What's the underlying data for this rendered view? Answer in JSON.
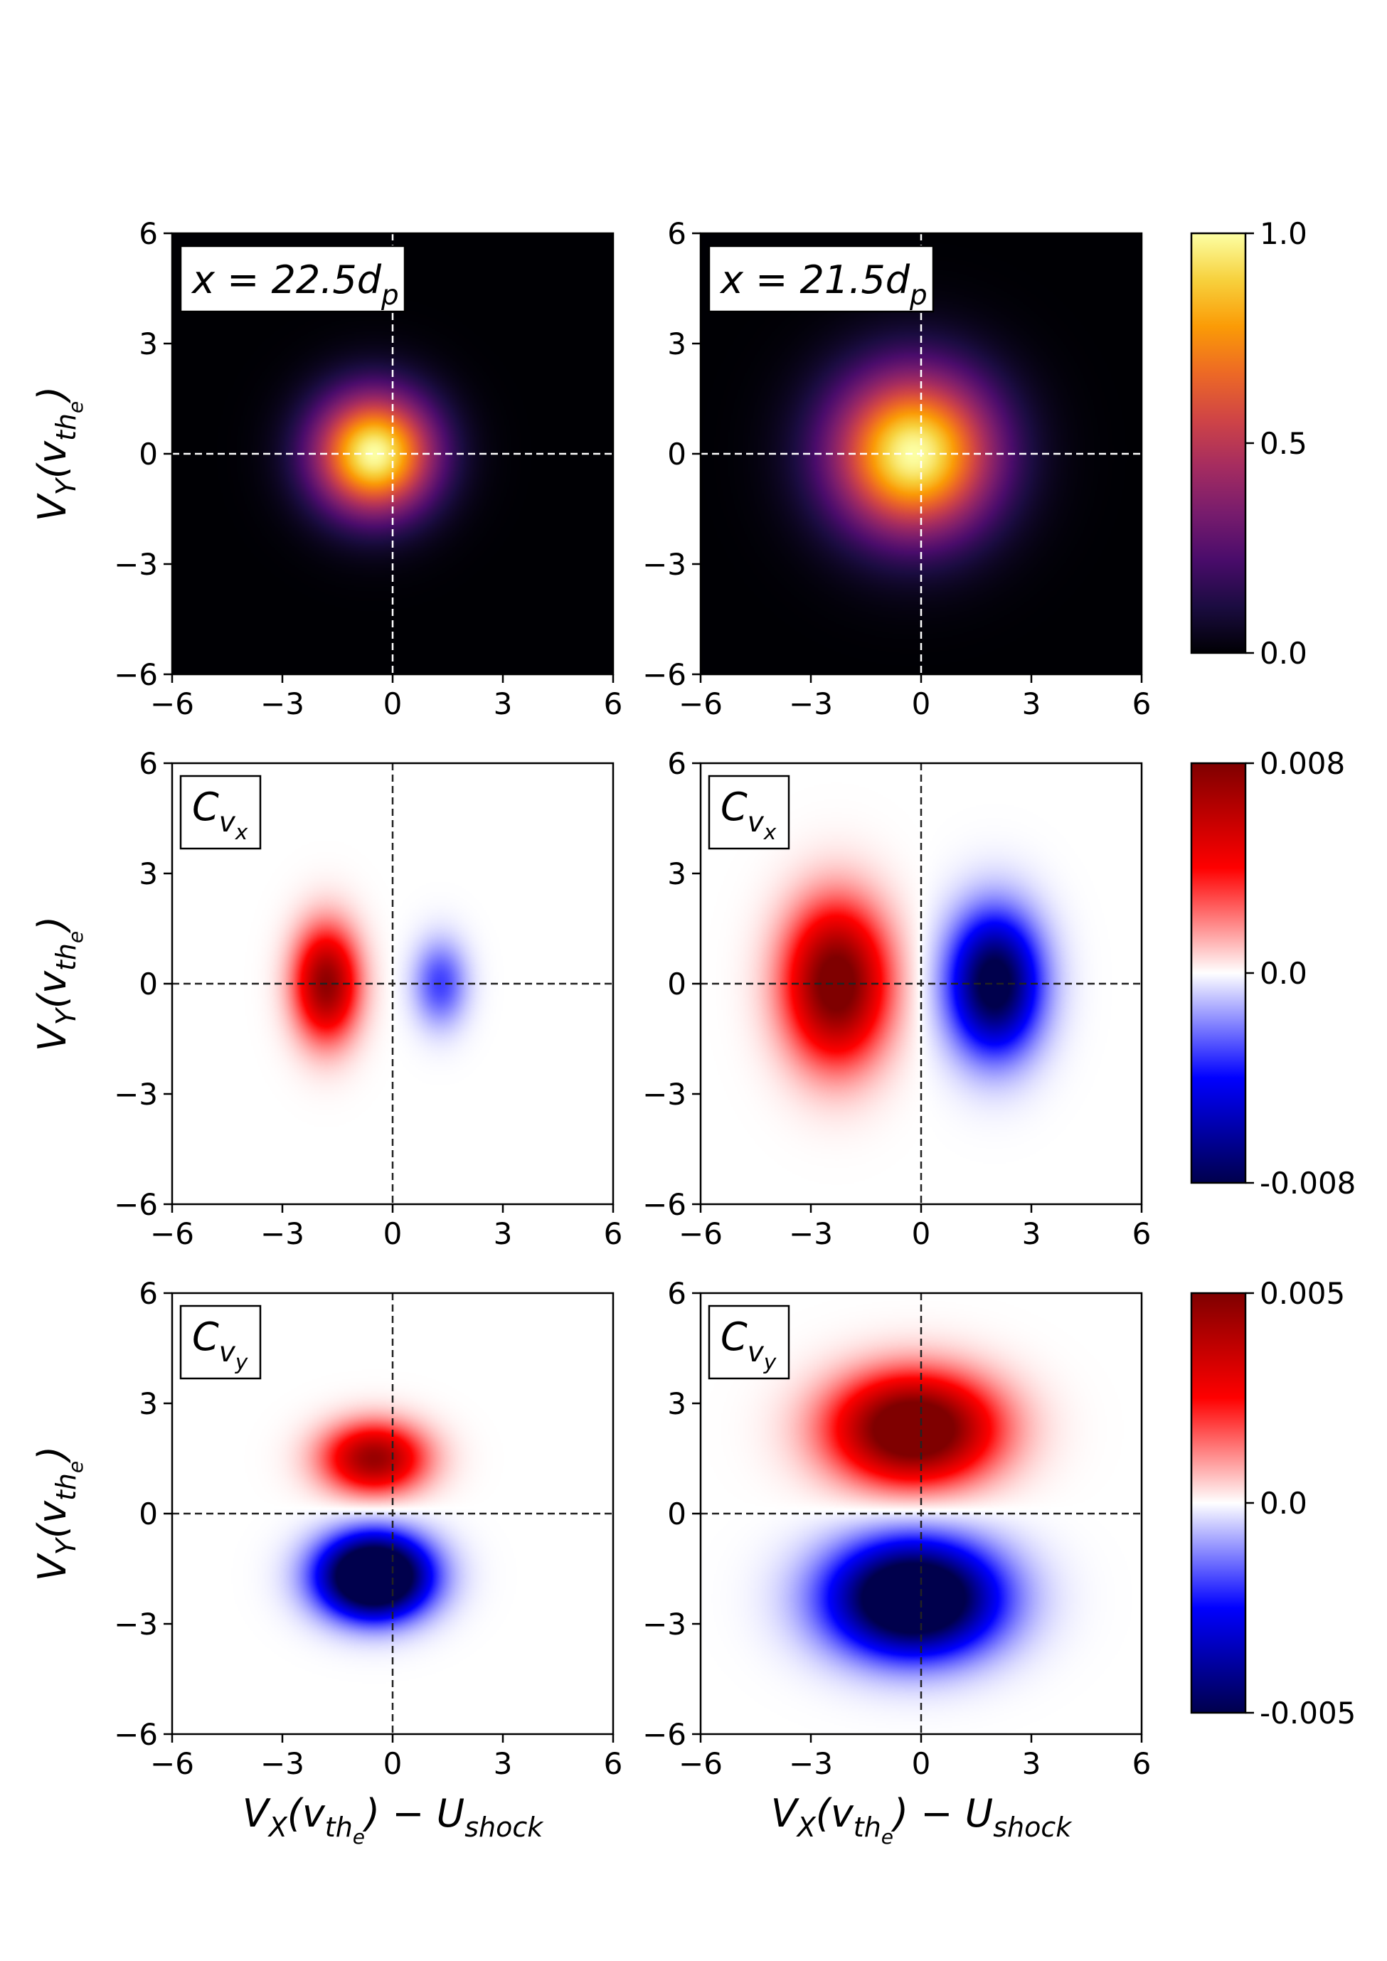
{
  "figure": {
    "column_xlabel": {
      "main": "V",
      "sub1": "X",
      "paren": "(v",
      "sub2": "th",
      "sub3": "e",
      "close": ") − U",
      "sub4": "shock"
    },
    "row_ylabel": {
      "main": "V",
      "sub1": "Y",
      "paren": "(v",
      "sub2": "th",
      "sub3": "e",
      "close": ")"
    }
  },
  "colors": {
    "inferno": [
      "#000004",
      "#1b0c41",
      "#4a0c6b",
      "#781c6d",
      "#a52c60",
      "#cf4446",
      "#ed6925",
      "#fb9b06",
      "#f7d13d",
      "#fcffa4"
    ],
    "seismic": [
      "#00004c",
      "#0000ff",
      "#ffffff",
      "#ff0000",
      "#7f0000"
    ],
    "dashed_dark": "#222222",
    "dashed_light": "#ffffff"
  },
  "chart_data": [
    {
      "id": "f-22.5",
      "type": "heatmap",
      "row": 0,
      "col": 0,
      "cmap": "inferno",
      "label": {
        "prefix": "x = 22.5d",
        "sub": "p"
      },
      "xlim": [
        -6,
        6
      ],
      "ylim": [
        -6,
        6
      ],
      "xticks": [
        "−6",
        "−3",
        "0",
        "3",
        "6"
      ],
      "yticks": [
        "6",
        "3",
        "0",
        "−3",
        "−6"
      ],
      "blobs": [
        {
          "cx": -0.5,
          "cy": 0.0,
          "sx": 1.15,
          "sy": 1.15,
          "amp": 1.0
        }
      ]
    },
    {
      "id": "f-21.5",
      "type": "heatmap",
      "row": 0,
      "col": 1,
      "cmap": "inferno",
      "label": {
        "prefix": "x = 21.5d",
        "sub": "p"
      },
      "xlim": [
        -6,
        6
      ],
      "ylim": [
        -6,
        6
      ],
      "xticks": [
        "−6",
        "−3",
        "0",
        "3",
        "6"
      ],
      "yticks": [
        "6",
        "3",
        "0",
        "−3",
        "−6"
      ],
      "blobs": [
        {
          "cx": -0.2,
          "cy": 0.0,
          "sx": 1.55,
          "sy": 1.55,
          "amp": 1.0
        }
      ]
    },
    {
      "id": "cvx-22.5",
      "type": "heatmap",
      "row": 1,
      "col": 0,
      "cmap": "seismic",
      "label": {
        "prefix": "C",
        "sub": "v",
        "subsub": "x"
      },
      "xlim": [
        -6,
        6
      ],
      "ylim": [
        -6,
        6
      ],
      "xticks": [
        "−6",
        "−3",
        "0",
        "3",
        "6"
      ],
      "yticks": [
        "6",
        "3",
        "0",
        "−3",
        "−6"
      ],
      "blobs": [
        {
          "cx": -1.8,
          "cy": 0.0,
          "sx": 0.6,
          "sy": 1.05,
          "amp": 0.0075
        },
        {
          "cx": 1.3,
          "cy": 0.0,
          "sx": 0.5,
          "sy": 0.8,
          "amp": -0.003
        }
      ]
    },
    {
      "id": "cvx-21.5",
      "type": "heatmap",
      "row": 1,
      "col": 1,
      "cmap": "seismic",
      "label": {
        "prefix": "C",
        "sub": "v",
        "subsub": "x"
      },
      "xlim": [
        -6,
        6
      ],
      "ylim": [
        -6,
        6
      ],
      "xticks": [
        "−6",
        "−3",
        "0",
        "3",
        "6"
      ],
      "yticks": [
        "6",
        "3",
        "0",
        "−3",
        "−6"
      ],
      "blobs": [
        {
          "cx": -2.3,
          "cy": 0.0,
          "sx": 0.95,
          "sy": 1.45,
          "amp": 0.009
        },
        {
          "cx": 2.0,
          "cy": 0.0,
          "sx": 0.85,
          "sy": 1.3,
          "amp": -0.009
        }
      ]
    },
    {
      "id": "cvy-22.5",
      "type": "heatmap",
      "row": 2,
      "col": 0,
      "cmap": "seismic",
      "label": {
        "prefix": "C",
        "sub": "v",
        "subsub": "y"
      },
      "xlim": [
        -6,
        6
      ],
      "ylim": [
        -6,
        6
      ],
      "xticks": [
        "−6",
        "−3",
        "0",
        "3",
        "6"
      ],
      "yticks": [
        "6",
        "3",
        "0",
        "−3",
        "−6"
      ],
      "blobs": [
        {
          "cx": -0.5,
          "cy": 1.5,
          "sx": 0.95,
          "sy": 0.65,
          "amp": 0.0045
        },
        {
          "cx": -0.5,
          "cy": -1.7,
          "sx": 1.0,
          "sy": 0.75,
          "amp": -0.0085
        }
      ]
    },
    {
      "id": "cvy-21.5",
      "type": "heatmap",
      "row": 2,
      "col": 1,
      "cmap": "seismic",
      "label": {
        "prefix": "C",
        "sub": "v",
        "subsub": "y"
      },
      "xlim": [
        -6,
        6
      ],
      "ylim": [
        -6,
        6
      ],
      "xticks": [
        "−6",
        "−3",
        "0",
        "3",
        "6"
      ],
      "yticks": [
        "6",
        "3",
        "0",
        "−3",
        "−6"
      ],
      "blobs": [
        {
          "cx": -0.2,
          "cy": 2.3,
          "sx": 1.5,
          "sy": 1.0,
          "amp": 0.0065
        },
        {
          "cx": -0.2,
          "cy": -2.3,
          "sx": 1.55,
          "sy": 1.05,
          "amp": -0.0075
        }
      ]
    }
  ],
  "colorbars": [
    {
      "id": "cb-f",
      "row": 0,
      "cmap": "inferno",
      "vmin": 0.0,
      "vmax": 1.0,
      "ticks": [
        "1.0",
        "0.5",
        "0.0"
      ]
    },
    {
      "id": "cb-cvx",
      "row": 1,
      "cmap": "seismic",
      "vmin": -0.008,
      "vmax": 0.008,
      "ticks": [
        "0.008",
        "0.0",
        "-0.008"
      ]
    },
    {
      "id": "cb-cvy",
      "row": 2,
      "cmap": "seismic",
      "vmin": -0.005,
      "vmax": 0.005,
      "ticks": [
        "0.005",
        "0.0",
        "-0.005"
      ]
    }
  ]
}
